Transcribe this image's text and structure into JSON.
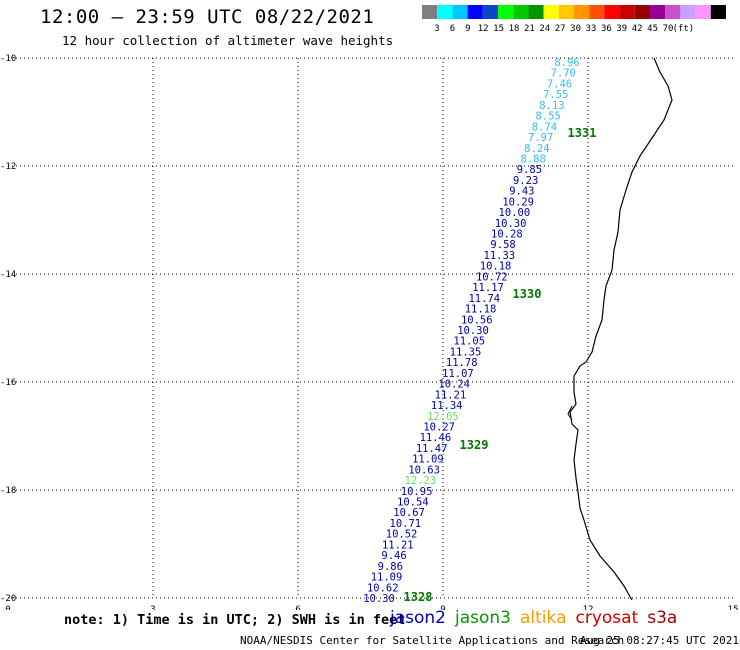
{
  "title": "12:00 – 23:59 UTC 08/22/2021",
  "subtitle": "12 hour collection of altimeter wave heights",
  "colorbar": {
    "colors": [
      "#7f7f7f",
      "#00ffff",
      "#00c8ff",
      "#0000ff",
      "#0a46c8",
      "#00ff00",
      "#00c800",
      "#009600",
      "#ffff00",
      "#ffc800",
      "#ff9600",
      "#ff5000",
      "#ff0000",
      "#c80000",
      "#960000",
      "#960096",
      "#c850c8",
      "#c8a0ff",
      "#ff96ff",
      "#000000"
    ],
    "labels": [
      "3",
      "6",
      "9",
      "12",
      "15",
      "18",
      "21",
      "24",
      "27",
      "30",
      "33",
      "36",
      "39",
      "42",
      "45",
      "70",
      "(ft)"
    ]
  },
  "axes": {
    "x_ticks": [
      "0",
      "3",
      "6",
      "9",
      "12",
      "15"
    ],
    "y_ticks": [
      "-10",
      "-12",
      "-14",
      "-16",
      "-18",
      "-20"
    ]
  },
  "track": {
    "wave_heights": [
      {
        "value": "8.96",
        "color": "#33bbee"
      },
      {
        "value": "7.70",
        "color": "#33bbee"
      },
      {
        "value": "7.46",
        "color": "#33bbee"
      },
      {
        "value": "7.55",
        "color": "#33bbee"
      },
      {
        "value": "8.13",
        "color": "#33bbee"
      },
      {
        "value": "8.55",
        "color": "#33bbee"
      },
      {
        "value": "8.74",
        "color": "#33bbee"
      },
      {
        "value": "7.97",
        "color": "#33bbee"
      },
      {
        "value": "8.24",
        "color": "#33bbee"
      },
      {
        "value": "8.88",
        "color": "#33bbee"
      },
      {
        "value": "9.85",
        "color": "#0000aa"
      },
      {
        "value": "9.23",
        "color": "#0000aa"
      },
      {
        "value": "9.43",
        "color": "#0000aa"
      },
      {
        "value": "10.29",
        "color": "#0000aa"
      },
      {
        "value": "10.00",
        "color": "#0000aa"
      },
      {
        "value": "10.30",
        "color": "#0000aa"
      },
      {
        "value": "10.28",
        "color": "#0000aa"
      },
      {
        "value": "9.58",
        "color": "#0000aa"
      },
      {
        "value": "11.33",
        "color": "#0000aa"
      },
      {
        "value": "10.18",
        "color": "#0000aa"
      },
      {
        "value": "10.72",
        "color": "#0000aa"
      },
      {
        "value": "11.17",
        "color": "#0000aa"
      },
      {
        "value": "11.74",
        "color": "#0000aa"
      },
      {
        "value": "11.18",
        "color": "#0000aa"
      },
      {
        "value": "10.56",
        "color": "#0000aa"
      },
      {
        "value": "10.30",
        "color": "#0000aa"
      },
      {
        "value": "11.05",
        "color": "#0000aa"
      },
      {
        "value": "11.35",
        "color": "#0000aa"
      },
      {
        "value": "11.78",
        "color": "#0000aa"
      },
      {
        "value": "11.07",
        "color": "#0000aa"
      },
      {
        "value": "10.24",
        "color": "#0000aa"
      },
      {
        "value": "11.21",
        "color": "#0000aa"
      },
      {
        "value": "11.34",
        "color": "#0000aa"
      },
      {
        "value": "12.05",
        "color": "#66dd66"
      },
      {
        "value": "10.27",
        "color": "#0000aa"
      },
      {
        "value": "11.46",
        "color": "#0000aa"
      },
      {
        "value": "11.47",
        "color": "#0000aa"
      },
      {
        "value": "11.09",
        "color": "#0000aa"
      },
      {
        "value": "10.63",
        "color": "#0000aa"
      },
      {
        "value": "12.23",
        "color": "#66dd66"
      },
      {
        "value": "10.95",
        "color": "#0000aa"
      },
      {
        "value": "10.54",
        "color": "#0000aa"
      },
      {
        "value": "10.67",
        "color": "#0000aa"
      },
      {
        "value": "10.71",
        "color": "#0000aa"
      },
      {
        "value": "10.52",
        "color": "#0000aa"
      },
      {
        "value": "11.21",
        "color": "#0000aa"
      },
      {
        "value": "9.46",
        "color": "#0000aa"
      },
      {
        "value": "9.86",
        "color": "#0000aa"
      },
      {
        "value": "11.09",
        "color": "#0000aa"
      },
      {
        "value": "10.62",
        "color": "#0000aa"
      },
      {
        "value": "10.30",
        "color": "#0000aa"
      }
    ],
    "time_labels": [
      {
        "text": "1331",
        "color": "#007700"
      },
      {
        "text": "1330",
        "color": "#007700"
      },
      {
        "text": "1329",
        "color": "#007700"
      },
      {
        "text": "1328",
        "color": "#007700"
      }
    ]
  },
  "note": "note: 1) Time is in UTC; 2) SWH is in feet",
  "missions": [
    {
      "name": "jason2",
      "color": "#0000cc"
    },
    {
      "name": "jason3",
      "color": "#009900"
    },
    {
      "name": "altika",
      "color": "#ff9900"
    },
    {
      "name": "cryosat",
      "color": "#cc0000"
    },
    {
      "name": "s3a",
      "color": "#990000"
    }
  ],
  "footer": {
    "credit": "NOAA/NESDIS Center for Satellite Applications and Research",
    "timestamp": "Aug 25 08:27:45 UTC 2021"
  }
}
